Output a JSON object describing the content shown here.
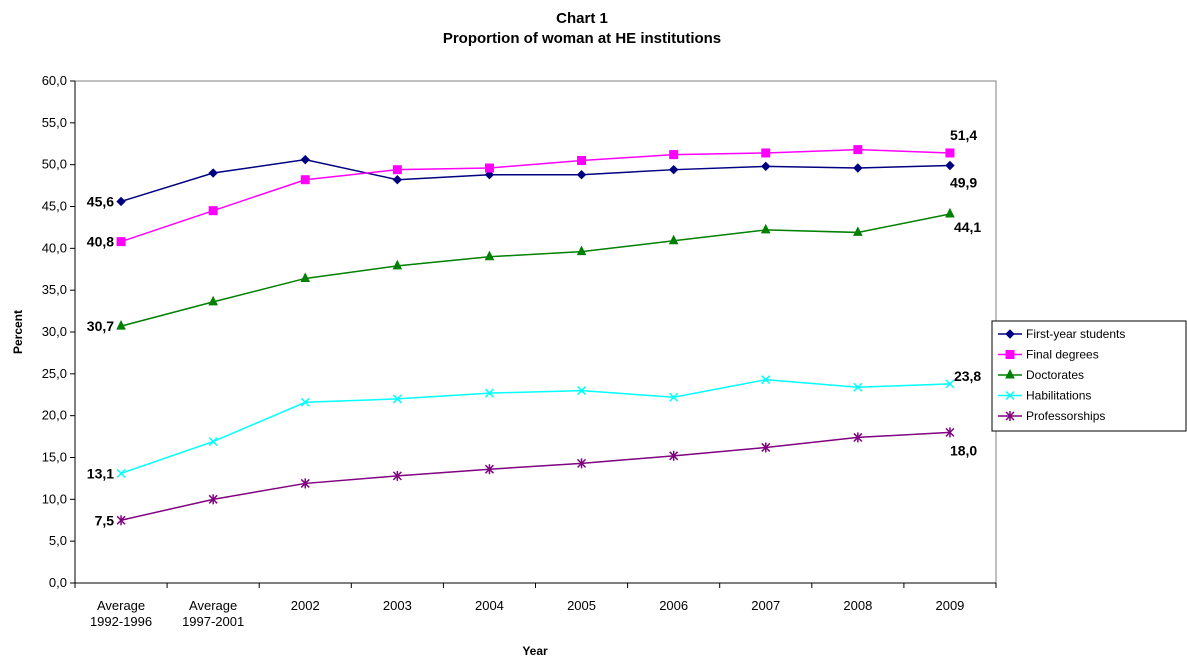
{
  "chart_data": {
    "type": "line",
    "title": "Chart 1",
    "subtitle": "Proportion of woman at HE institutions",
    "xlabel": "Year",
    "ylabel": "Percent",
    "ylim": [
      0,
      60
    ],
    "y_ticks": [
      "0,0",
      "5,0",
      "10,0",
      "15,0",
      "20,0",
      "25,0",
      "30,0",
      "35,0",
      "40,0",
      "45,0",
      "50,0",
      "55,0",
      "60,0"
    ],
    "categories": [
      [
        "Average",
        "1992-1996"
      ],
      [
        "Average",
        "1997-2001"
      ],
      [
        "2002"
      ],
      [
        "2003"
      ],
      [
        "2004"
      ],
      [
        "2005"
      ],
      [
        "2006"
      ],
      [
        "2007"
      ],
      [
        "2008"
      ],
      [
        "2009"
      ]
    ],
    "legend_position": "right",
    "series": [
      {
        "name": "First-year students",
        "color": "#000080",
        "marker": "diamond",
        "values": [
          45.6,
          49.0,
          50.6,
          48.2,
          48.8,
          48.8,
          49.4,
          49.8,
          49.6,
          49.9
        ]
      },
      {
        "name": "Final degrees",
        "color": "#ff00ff",
        "marker": "square",
        "values": [
          40.8,
          44.5,
          48.2,
          49.4,
          49.6,
          50.5,
          51.2,
          51.4,
          51.8,
          51.4
        ]
      },
      {
        "name": "Doctorates",
        "color": "#008000",
        "marker": "triangle",
        "values": [
          30.7,
          33.6,
          36.4,
          37.9,
          39.0,
          39.6,
          40.9,
          42.2,
          41.9,
          44.1
        ]
      },
      {
        "name": "Habilitations",
        "color": "#00ffff",
        "marker": "x",
        "values": [
          13.1,
          16.9,
          21.6,
          22.0,
          22.7,
          23.0,
          22.2,
          24.3,
          23.4,
          23.8
        ]
      },
      {
        "name": "Professorships",
        "color": "#800080",
        "marker": "star",
        "values": [
          7.5,
          10.0,
          11.9,
          12.8,
          13.6,
          14.3,
          15.2,
          16.2,
          17.4,
          18.0
        ]
      }
    ],
    "data_labels": [
      {
        "series": 0,
        "index": 0,
        "text": "45,6"
      },
      {
        "series": 0,
        "index": 9,
        "text": "49,9"
      },
      {
        "series": 1,
        "index": 0,
        "text": "40,8"
      },
      {
        "series": 1,
        "index": 9,
        "text": "51,4"
      },
      {
        "series": 2,
        "index": 0,
        "text": "30,7"
      },
      {
        "series": 2,
        "index": 9,
        "text": "44,1"
      },
      {
        "series": 3,
        "index": 0,
        "text": "13,1"
      },
      {
        "series": 3,
        "index": 9,
        "text": "23,8"
      },
      {
        "series": 4,
        "index": 0,
        "text": "7,5"
      },
      {
        "series": 4,
        "index": 9,
        "text": "18,0"
      }
    ]
  }
}
